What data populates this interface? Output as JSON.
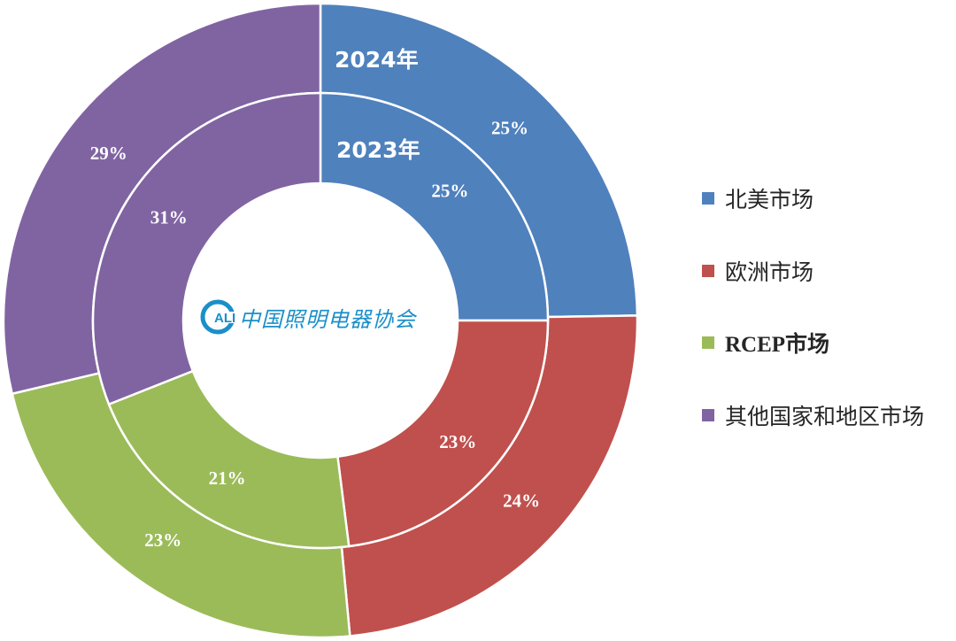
{
  "chart_data": {
    "type": "pie",
    "subtype": "nested-donut",
    "rings": [
      {
        "name": "2024年",
        "values": [
          25,
          24,
          23,
          29
        ],
        "labels": [
          "25%",
          "24%",
          "23%",
          "29%"
        ]
      },
      {
        "name": "2023年",
        "values": [
          25,
          23,
          21,
          31
        ],
        "labels": [
          "25%",
          "23%",
          "21%",
          "31%"
        ]
      }
    ],
    "categories": [
      "北美市场",
      "欧洲市场",
      "RCEP市场",
      "其他国家和地区市场"
    ],
    "colors": [
      "#4f81bd",
      "#c0504d",
      "#9bbb59",
      "#8064a2"
    ],
    "legend_position": "right"
  },
  "logo": {
    "badge": "ALI",
    "text": "中国照明电器协会"
  }
}
